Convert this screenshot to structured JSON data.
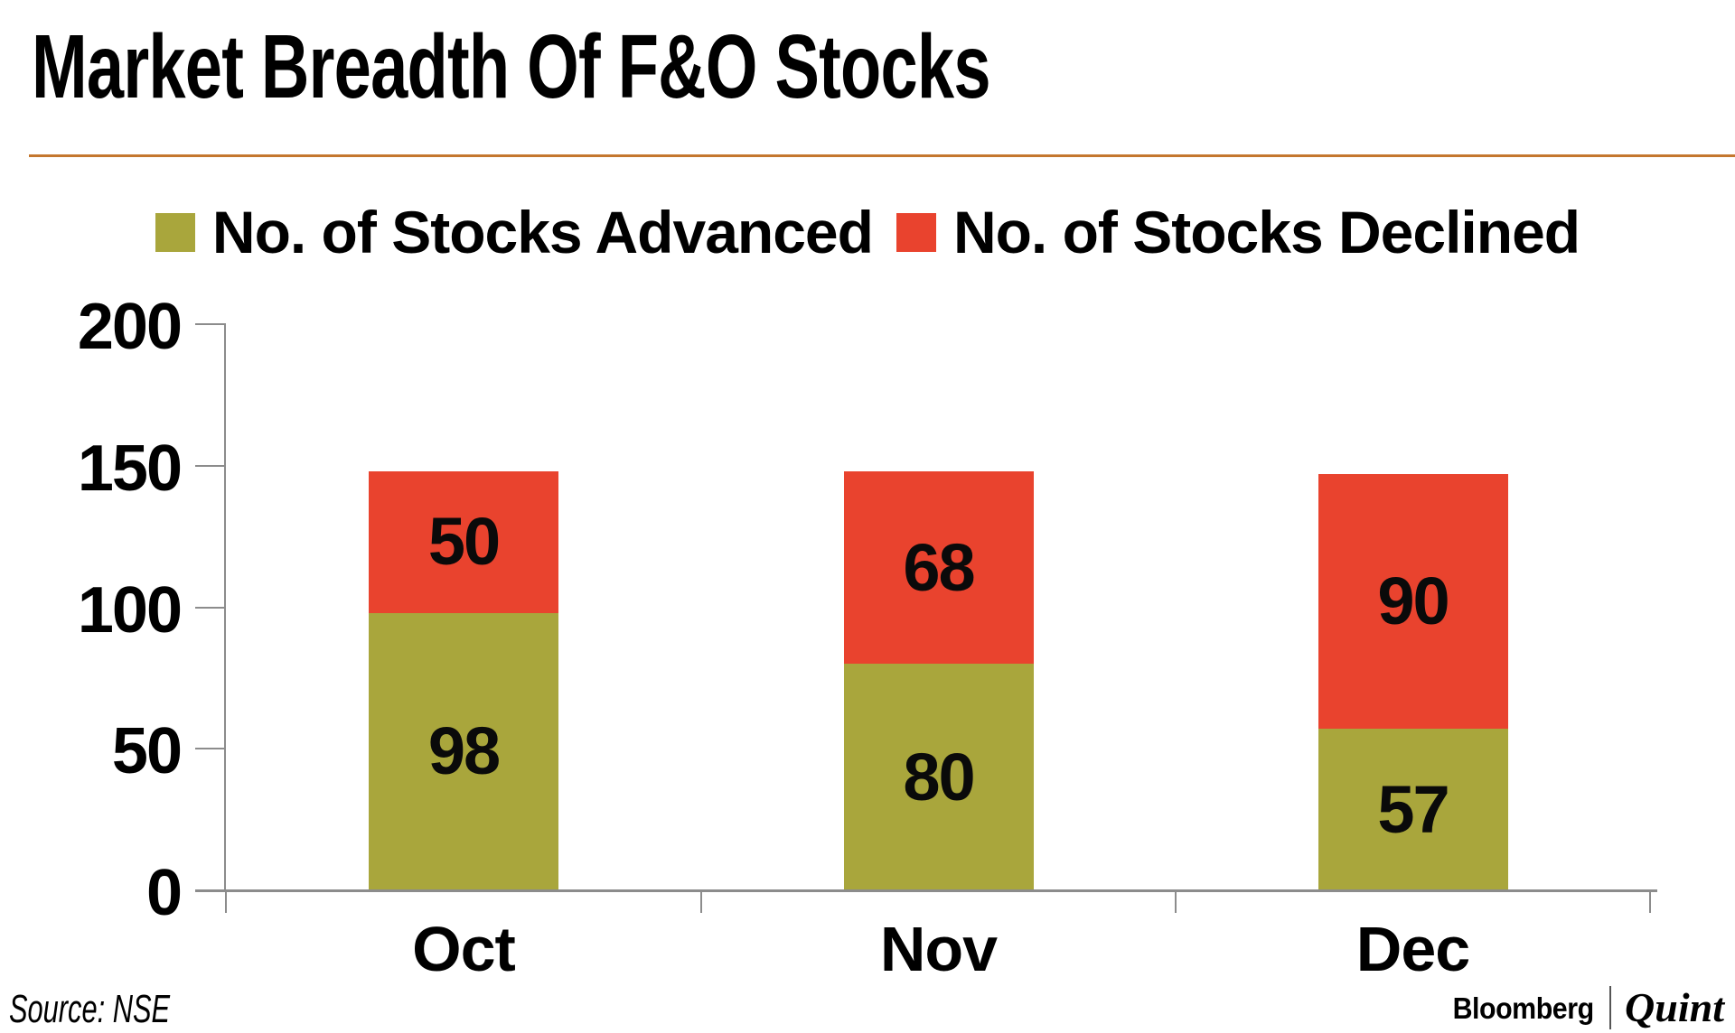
{
  "title": "Market Breadth Of F&O Stocks",
  "source_note": "Source: NSE",
  "branding": {
    "bloomberg": "Bloomberg",
    "quint": "Quint"
  },
  "colors": {
    "advanced": "#a9a63c",
    "declined": "#e9432e",
    "title_rule": "#c4772e",
    "axis": "#8c8c8c",
    "text": "#000000"
  },
  "chart_data": {
    "type": "bar",
    "subtype": "stacked-vertical",
    "categories": [
      "Oct",
      "Nov",
      "Dec"
    ],
    "series": [
      {
        "name": "No. of Stocks Advanced",
        "color": "#a9a63c",
        "values": [
          98,
          80,
          57
        ]
      },
      {
        "name": "No. of Stocks Declined",
        "color": "#e9432e",
        "values": [
          50,
          68,
          90
        ]
      }
    ],
    "totals": [
      148,
      148,
      147
    ],
    "ylim": [
      0,
      200
    ],
    "yticks": [
      0,
      50,
      100,
      150,
      200
    ],
    "grid": false,
    "legend_position": "top",
    "bar_value_labels": true
  }
}
